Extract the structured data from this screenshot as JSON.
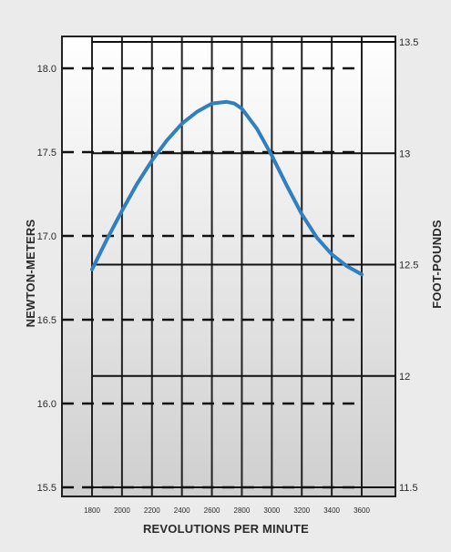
{
  "chart_data": {
    "type": "line",
    "xlabel": "REVOLUTIONS PER MINUTE",
    "ylabel": "NEWTON-METERS",
    "ylabel_right": "FOOT-POUNDS",
    "x_ticks": [
      "1800",
      "2000",
      "2200",
      "2400",
      "2600",
      "2800",
      "3000",
      "3200",
      "3400",
      "3600"
    ],
    "y_ticks": [
      "15.5",
      "16.0",
      "16.5",
      "17.0",
      "17.5",
      "18.0"
    ],
    "y2_ticks": [
      "11.5",
      "12",
      "12.5",
      "13",
      "13.5"
    ],
    "xlim": [
      1800,
      3600
    ],
    "ylim": [
      15.5,
      18.2
    ],
    "y2lim": [
      11.5,
      13.5
    ],
    "grid": true,
    "series_color": "#2f7fc1",
    "series": [
      {
        "x": [
          1800,
          1900,
          2000,
          2100,
          2200,
          2300,
          2400,
          2500,
          2600,
          2700,
          2750,
          2800,
          2900,
          3000,
          3100,
          3200,
          3300,
          3400,
          3500,
          3600
        ],
        "y": [
          16.8,
          16.98,
          17.15,
          17.31,
          17.45,
          17.57,
          17.67,
          17.74,
          17.79,
          17.8,
          17.79,
          17.76,
          17.64,
          17.48,
          17.3,
          17.13,
          16.99,
          16.89,
          16.82,
          16.77
        ]
      }
    ]
  }
}
